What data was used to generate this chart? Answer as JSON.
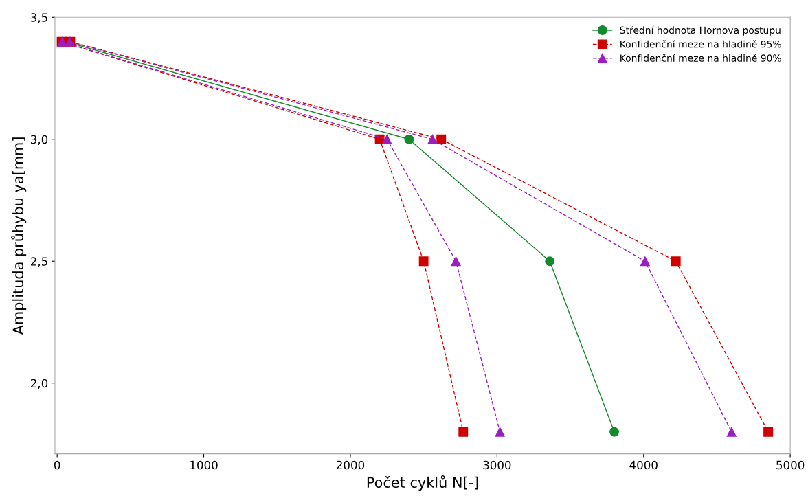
{
  "chart_data": {
    "type": "line",
    "xlabel": "Počet cyklů N[-]",
    "ylabel": "Amplituda průhybu ya[mm]",
    "xlim": [
      -15,
      5000
    ],
    "xticks": [
      0,
      1000,
      2000,
      3000,
      4000,
      5000
    ],
    "ylim": [
      1.71,
      3.5
    ],
    "yticks": [
      {
        "value": 2.0,
        "label": "2,0"
      },
      {
        "value": 2.5,
        "label": "2,5"
      },
      {
        "value": 3.0,
        "label": "3,0"
      },
      {
        "value": 3.5,
        "label": "3,5"
      }
    ],
    "grid": false,
    "legend": "top right",
    "series": [
      {
        "name": "Střední hodnota Hornova postupu",
        "color": "#138a2e",
        "marker": "circle",
        "line_style": "solid",
        "x": [
          60,
          2400,
          3360,
          3800
        ],
        "values": [
          3.4,
          3.0,
          2.5,
          1.8
        ]
      },
      {
        "name": "Konfidenční meze na hladině 95%",
        "color": "#d00000",
        "marker": "square",
        "line_style": "dashed",
        "x": [
          30,
          2200,
          2500,
          2770
        ],
        "values": [
          3.4,
          3.0,
          2.5,
          1.8
        ]
      },
      {
        "name": "Konfidenční meze na hladině 90%",
        "color": "#9b1fc0",
        "marker": "triangle",
        "line_style": "dashed",
        "x": [
          35,
          2250,
          2720,
          3020
        ],
        "values": [
          3.4,
          3.0,
          2.5,
          1.8
        ]
      },
      {
        "color": "#d00000",
        "marker": "square",
        "line_style": "dashed",
        "x": [
          90,
          2620,
          4220,
          4850
        ],
        "values": [
          3.4,
          3.0,
          2.5,
          1.8
        ]
      },
      {
        "color": "#9b1fc0",
        "marker": "triangle",
        "line_style": "dashed",
        "x": [
          85,
          2560,
          4010,
          4600
        ],
        "values": [
          3.4,
          3.0,
          2.5,
          1.8
        ]
      }
    ]
  }
}
